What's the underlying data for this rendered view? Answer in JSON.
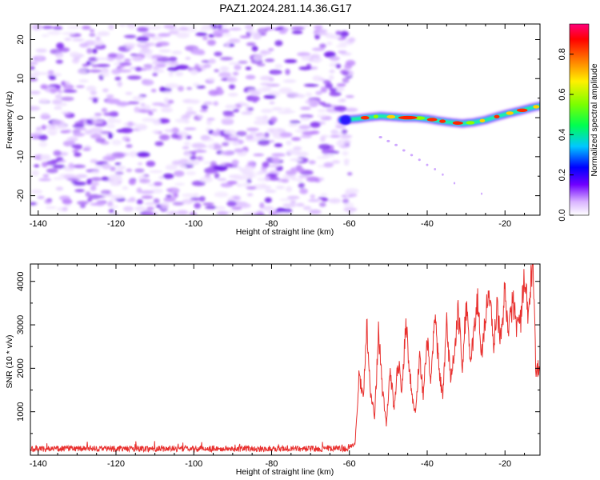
{
  "title": "PAZ1.2024.281.14.36.G17",
  "colors": {
    "snr_line": "#e8302e",
    "noise_purple": "#8a2be2",
    "frame": "#000000"
  },
  "chart_data": [
    {
      "type": "heatmap",
      "xlabel": "Height of straight line (km)",
      "ylabel": "Frequency (Hz)",
      "xlim": [
        -142,
        -11
      ],
      "ylim": [
        -25,
        24
      ],
      "xticks": [
        -140,
        -120,
        -100,
        -80,
        -60,
        -40,
        -20
      ],
      "yticks": [
        -20,
        -10,
        0,
        10,
        20
      ],
      "noise_region_x": [
        -142,
        -60
      ],
      "signal_ridge": {
        "x": [
          -62,
          -58,
          -55,
          -52,
          -49,
          -46,
          -43,
          -40,
          -37,
          -34,
          -31,
          -28,
          -25,
          -22,
          -19,
          -16,
          -13,
          -11
        ],
        "y": [
          -0.6,
          -0.3,
          0.1,
          0.4,
          0.2,
          0.0,
          0.0,
          -0.3,
          -0.8,
          -1.2,
          -1.5,
          -1.2,
          -0.6,
          0.3,
          1.1,
          1.8,
          2.6,
          3.0
        ]
      },
      "colorbar": {
        "label": "Normalized spectral amplitude",
        "range": [
          0,
          0.95
        ],
        "ticks": [
          "0.0",
          "0.2",
          "0.4",
          "0.6",
          "0.8"
        ]
      }
    },
    {
      "type": "line",
      "xlabel": "Height of straight line (km)",
      "ylabel": "SNR (10 * v/v)",
      "xlim": [
        -142,
        -11
      ],
      "ylim": [
        0,
        4400
      ],
      "xticks": [
        -140,
        -120,
        -100,
        -80,
        -60,
        -40,
        -20
      ],
      "yticks": [
        1000,
        2000,
        3000,
        4000
      ],
      "series": [
        {
          "x": [
            -142,
            -120,
            -100,
            -80,
            -60,
            -58.5,
            -57.5,
            -56.5,
            -55.5,
            -54.5,
            -53.5,
            -52.5,
            -51.5,
            -50.5,
            -49.5,
            -48.5,
            -47.5,
            -46.5,
            -45.5,
            -44,
            -43,
            -42,
            -41,
            -40,
            -39,
            -38,
            -37,
            -36,
            -35,
            -34,
            -33,
            -32,
            -31,
            -30,
            -29,
            -28,
            -27,
            -26,
            -25,
            -24,
            -23,
            -22,
            -21,
            -20,
            -19,
            -18,
            -17,
            -16,
            -15,
            -14,
            -13,
            -12.5,
            -12,
            -11.5,
            -11
          ],
          "y": [
            150,
            150,
            150,
            150,
            150,
            300,
            1900,
            1300,
            3000,
            1400,
            900,
            2850,
            1500,
            700,
            2000,
            1000,
            2200,
            1500,
            3100,
            1400,
            950,
            2300,
            1400,
            2600,
            1700,
            3200,
            2000,
            1300,
            3000,
            1800,
            2300,
            3300,
            2000,
            3450,
            2200,
            2800,
            3600,
            2300,
            3200,
            3800,
            2500,
            3400,
            2600,
            3900,
            2800,
            3600,
            3000,
            3100,
            4000,
            3200,
            4350,
            3800,
            1700,
            2100,
            1900
          ]
        }
      ]
    }
  ]
}
